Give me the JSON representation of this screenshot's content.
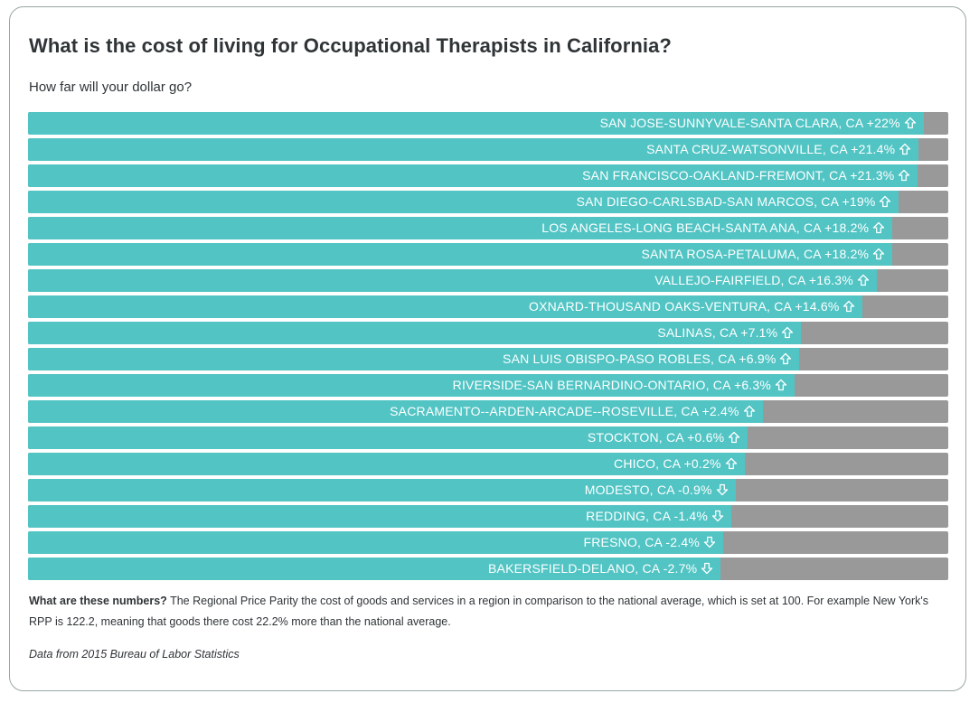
{
  "title": "What is the cost of living for Occupational Therapists in California?",
  "subtitle": "How far will your dollar go?",
  "note": {
    "lead": "What are these numbers?",
    "text": " The Regional Price Parity the cost of goods and services in a region in comparison to the national average, which is set at 100. For example New York's RPP is 122.2, meaning that goods there cost 22.2% more than the national average."
  },
  "source": "Data from 2015 Bureau of Labor Statistics",
  "colors": {
    "fill": "#52c4c4",
    "track": "#999999",
    "label": "#ffffff"
  },
  "chart_data": {
    "type": "bar",
    "orientation": "horizontal",
    "categories": [
      "SAN JOSE-SUNNYVALE-SANTA CLARA, CA",
      "SANTA CRUZ-WATSONVILLE, CA",
      "SAN FRANCISCO-OAKLAND-FREMONT, CA",
      "SAN DIEGO-CARLSBAD-SAN MARCOS, CA",
      "LOS ANGELES-LONG BEACH-SANTA ANA, CA",
      "SANTA ROSA-PETALUMA, CA",
      "VALLEJO-FAIRFIELD, CA",
      "OXNARD-THOUSAND OAKS-VENTURA, CA",
      "SALINAS, CA",
      "SAN LUIS OBISPO-PASO ROBLES, CA",
      "RIVERSIDE-SAN BERNARDINO-ONTARIO, CA",
      "SACRAMENTO--ARDEN-ARCADE--ROSEVILLE, CA",
      "STOCKTON, CA",
      "CHICO, CA",
      "MODESTO, CA",
      "REDDING, CA",
      "FRESNO, CA",
      "BAKERSFIELD-DELANO, CA"
    ],
    "values": [
      22,
      21.4,
      21.3,
      19,
      18.2,
      18.2,
      16.3,
      14.6,
      7.1,
      6.9,
      6.3,
      2.4,
      0.6,
      0.2,
      -0.9,
      -1.4,
      -2.4,
      -2.7
    ],
    "value_labels": [
      "+22%",
      "+21.4%",
      "+21.3%",
      "+19%",
      "+18.2%",
      "+18.2%",
      "+16.3%",
      "+14.6%",
      "+7.1%",
      "+6.9%",
      "+6.3%",
      "+2.4%",
      "+0.6%",
      "+0.2%",
      "-0.9%",
      "-1.4%",
      "-2.4%",
      "-2.7%"
    ],
    "directions": [
      "up",
      "up",
      "up",
      "up",
      "up",
      "up",
      "up",
      "up",
      "up",
      "up",
      "up",
      "up",
      "up",
      "up",
      "down",
      "down",
      "down",
      "down"
    ],
    "xlim": [
      -87,
      25
    ],
    "grid": false,
    "legend": "none"
  }
}
